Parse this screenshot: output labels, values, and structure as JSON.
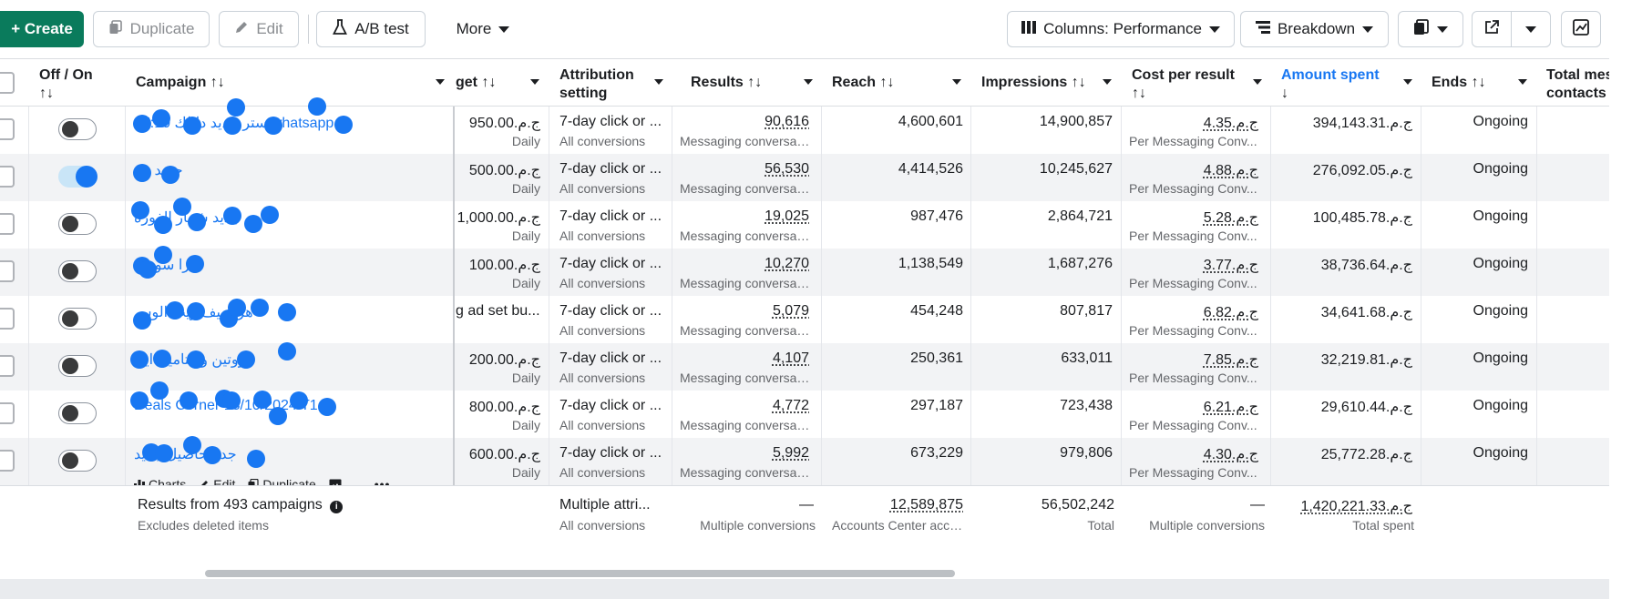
{
  "toolbar": {
    "create": "+ Create",
    "duplicate": "Duplicate",
    "edit": "Edit",
    "ab_test": "A/B test",
    "more": "More",
    "columns": "Columns: Performance",
    "breakdown": "Breakdown"
  },
  "headers": {
    "off_on": "Off / On",
    "campaign": "Campaign",
    "budget": "get",
    "attribution_1": "Attribution",
    "attribution_2": "setting",
    "results": "Results",
    "reach": "Reach",
    "impressions": "Impressions",
    "cpr_1": "Cost per result",
    "amount_spent": "Amount spent",
    "ends": "Ends",
    "total_msg_1": "Total mes",
    "total_msg_2": "contacts",
    "sort_icon": "↑↓",
    "sort_down": "↓"
  },
  "rows": [
    {
      "campaign": "ستر جديد دايلك 17:10 whatsapp",
      "on": false,
      "budget": "950.00.ج.م",
      "budget_sub": "Daily",
      "attr": "7-day click or ...",
      "attr_sub": "All conversions",
      "results": "90,616",
      "results_sub": "Messaging conversat...",
      "reach": "4,600,601",
      "impressions": "14,900,857",
      "cpr": "4.35.ج.م",
      "cpr_sub": "Per Messaging Conv...",
      "spent": "394,143.31.ج.م",
      "ends": "Ongoing"
    },
    {
      "campaign": "جديد سـ",
      "on": true,
      "budget": "500.00.ج.م",
      "budget_sub": "Daily",
      "attr": "7-day click or ...",
      "attr_sub": "All conversions",
      "results": "56,530",
      "results_sub": "Messaging conversat...",
      "reach": "4,414,526",
      "impressions": "10,245,627",
      "cpr": "4.88.ج.م",
      "cpr_sub": "Per Messaging Conv...",
      "spent": "276,092.05.ج.م",
      "ends": "Ongoing"
    },
    {
      "campaign": "جديد شمار الفورة",
      "on": false,
      "budget": "1,000.00.ج.م",
      "budget_sub": "Daily",
      "attr": "7-day click or ...",
      "attr_sub": "All conversions",
      "results": "19,025",
      "results_sub": "Messaging conversat...",
      "reach": "987,476",
      "impressions": "2,864,721",
      "cpr": "5.28.ج.م",
      "cpr_sub": "Per Messaging Conv...",
      "spent": "100,485.78.ج.م",
      "ends": "Ongoing"
    },
    {
      "campaign": "جرا سو جد",
      "on": false,
      "budget": "100.00.ج.م",
      "budget_sub": "Daily",
      "attr": "7-day click or ...",
      "attr_sub": "All conversions",
      "results": "10,270",
      "results_sub": "Messaging conversat...",
      "reach": "1,138,549",
      "impressions": "1,687,276",
      "cpr": "3.77.ج.م",
      "cpr_sub": "Per Messaging Conv...",
      "spent": "38,736.64.ج.م",
      "ends": "Ongoing"
    },
    {
      "campaign": "هر صيف زيت الوس",
      "on": false,
      "budget": "g ad set bu...",
      "budget_sub": "",
      "attr": "7-day click or ...",
      "attr_sub": "All conversions",
      "results": "5,079",
      "results_sub": "Messaging conversat...",
      "reach": "454,248",
      "impressions": "807,817",
      "cpr": "6.82.ج.م",
      "cpr_sub": "Per Messaging Conv...",
      "spent": "34,641.68.ج.م",
      "ends": "Ongoing"
    },
    {
      "campaign": "بروتين وفيتامين ايل",
      "on": false,
      "budget": "200.00.ج.م",
      "budget_sub": "Daily",
      "attr": "7-day click or ...",
      "attr_sub": "All conversions",
      "results": "4,107",
      "results_sub": "Messaging conversat...",
      "reach": "250,361",
      "impressions": "633,011",
      "cpr": "7.85.ج.م",
      "cpr_sub": "Per Messaging Conv...",
      "spent": "32,219.81.ج.م",
      "ends": "Ongoing"
    },
    {
      "campaign": "Deals Corner 18/10/2024 T1",
      "on": false,
      "budget": "800.00.ج.م",
      "budget_sub": "Daily",
      "attr": "7-day click or ...",
      "attr_sub": "All conversions",
      "results": "4,772",
      "results_sub": "Messaging conversat...",
      "reach": "297,187",
      "impressions": "723,438",
      "cpr": "6.21.ج.م",
      "cpr_sub": "Per Messaging Conv...",
      "spent": "29,610.44.ج.م",
      "ends": "Ongoing"
    },
    {
      "campaign": "جد محاصيل جديد",
      "on": false,
      "budget": "600.00.ج.م",
      "budget_sub": "Daily",
      "attr": "7-day click or ...",
      "attr_sub": "All conversions",
      "results": "5,992",
      "results_sub": "Messaging conversat...",
      "reach": "673,229",
      "impressions": "979,806",
      "cpr": "4.30.ج.م",
      "cpr_sub": "Per Messaging Conv...",
      "spent": "25,772.28.ج.م",
      "ends": "Ongoing"
    }
  ],
  "hover_actions": {
    "charts": "Charts",
    "edit": "Edit",
    "duplicate": "Duplicate",
    "more": "•••"
  },
  "footer": {
    "title": "Results from 493 campaigns",
    "sub": "Excludes deleted items",
    "attr": "Multiple attri...",
    "attr_sub": "All conversions",
    "results": "—",
    "results_sub": "Multiple conversions",
    "reach": "12,589,875",
    "reach_sub": "Accounts Center acco...",
    "impressions": "56,502,242",
    "impressions_sub": "Total",
    "cpr": "—",
    "cpr_sub": "Multiple conversions",
    "spent": "1,420,221.33.ج.م",
    "spent_sub": "Total spent"
  },
  "colors": {
    "accent": "#1877f2",
    "create_green": "#0a7b5c"
  }
}
